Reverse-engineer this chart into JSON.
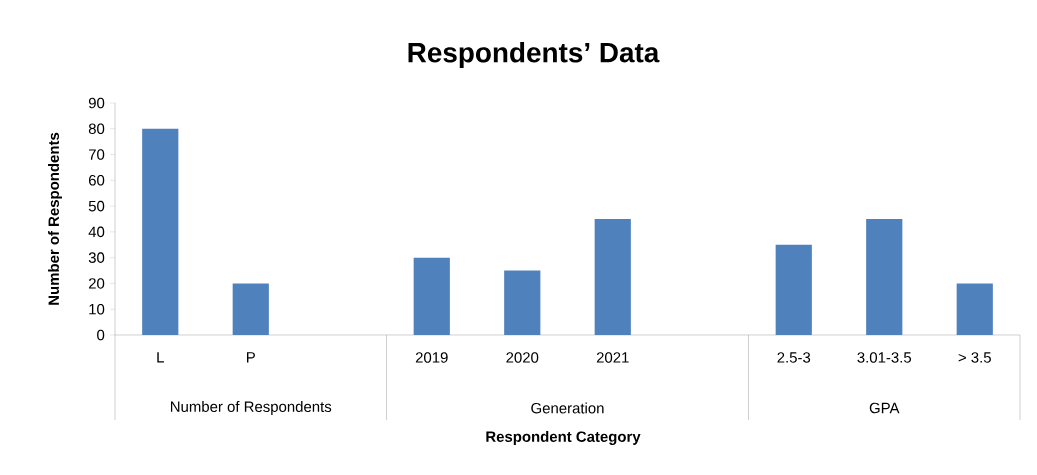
{
  "chart_data": {
    "type": "bar",
    "title": "Respondents’ Data",
    "xlabel": "Respondent Category",
    "ylabel": "Number of Respondents",
    "categories": [
      "L",
      "P",
      null,
      "2019",
      "2020",
      "2021",
      null,
      "2.5-3",
      "3.01-3.5",
      "> 3.5"
    ],
    "values": [
      80,
      20,
      null,
      30,
      25,
      45,
      null,
      35,
      45,
      20
    ],
    "color": "#4f81bd",
    "ylim": [
      0,
      90
    ],
    "yticks": [
      0,
      10,
      20,
      30,
      40,
      50,
      60,
      70,
      80,
      90
    ],
    "annotations": [
      "Number of Respondents",
      "Generation",
      "GPA"
    ]
  }
}
